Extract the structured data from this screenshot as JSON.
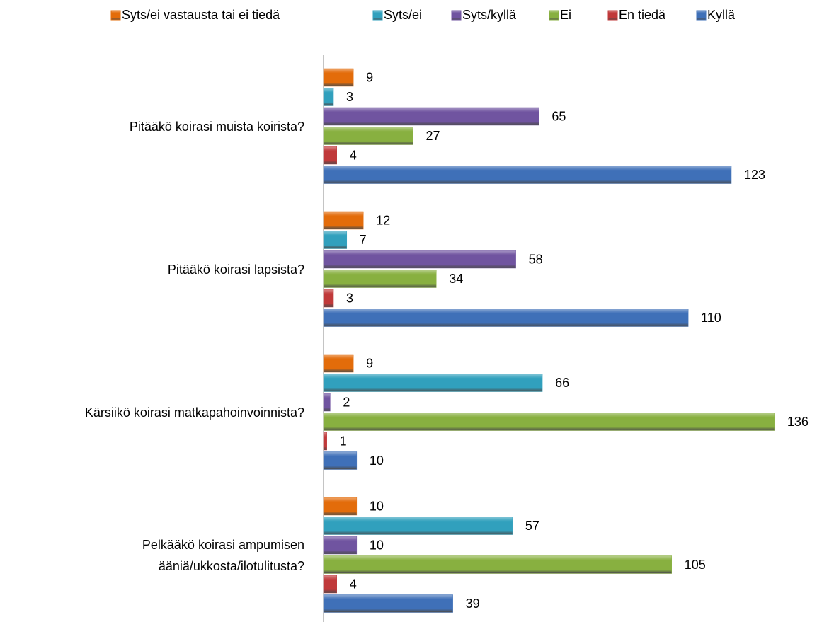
{
  "chart_data": {
    "type": "bar",
    "orientation": "horizontal",
    "categories": [
      "Pitääkö koirasi muista koirista?",
      "Pitääkö koirasi lapsista?",
      "Kärsiikö koirasi matkapahoinvoinnista?",
      "Pelkääkö koirasi ampumisen\nääniä/ukkosta/ilotulitusta?"
    ],
    "series": [
      {
        "name": "Syts/ei vastausta tai ei tiedä",
        "color": "#e36c0a",
        "values": [
          9,
          12,
          9,
          10
        ]
      },
      {
        "name": "Syts/ei",
        "color": "#31a0bd",
        "values": [
          3,
          7,
          66,
          57
        ]
      },
      {
        "name": "Syts/kyllä",
        "color": "#7054a0",
        "values": [
          65,
          58,
          2,
          10
        ]
      },
      {
        "name": "Ei",
        "color": "#88b040",
        "values": [
          27,
          34,
          136,
          105
        ]
      },
      {
        "name": "En tiedä",
        "color": "#c0393a",
        "values": [
          4,
          3,
          1,
          4
        ]
      },
      {
        "name": "Kyllä",
        "color": "#3f70b8",
        "values": [
          123,
          110,
          10,
          39
        ]
      }
    ],
    "legend": "top",
    "data_labels": true
  }
}
